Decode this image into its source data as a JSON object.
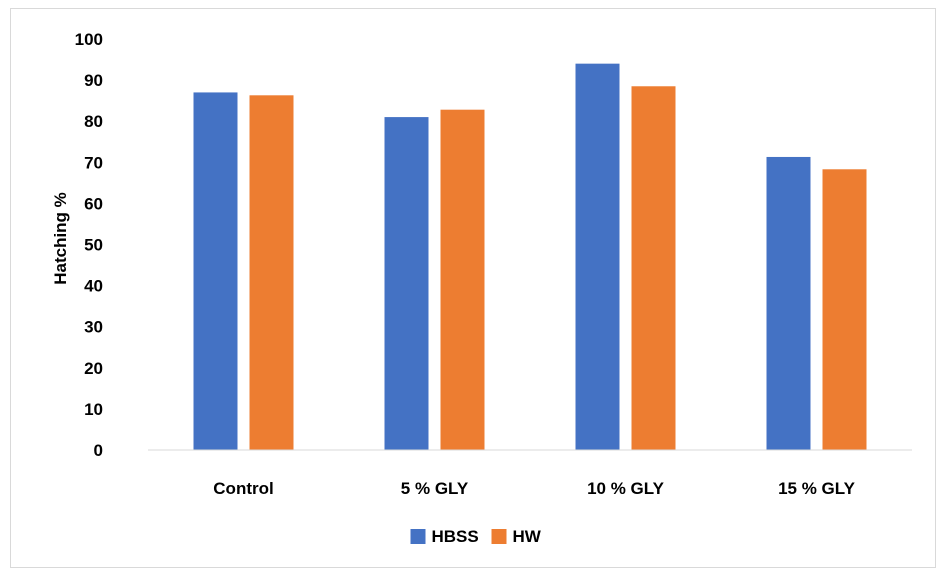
{
  "chart_data": {
    "type": "bar",
    "title": "",
    "xlabel": "",
    "ylabel": "Hatching %",
    "ylim": [
      0,
      100
    ],
    "yticks": [
      0,
      10,
      20,
      30,
      40,
      50,
      60,
      70,
      80,
      90,
      100
    ],
    "categories": [
      "Control",
      "5 % GLY",
      "10 % GLY",
      "15 % GLY"
    ],
    "series": [
      {
        "name": "HBSS",
        "color": "#4472c4",
        "values": [
          87,
          81,
          94,
          71.3
        ]
      },
      {
        "name": "HW",
        "color": "#ed7d31",
        "values": [
          86.3,
          82.8,
          88.5,
          68.3
        ]
      }
    ],
    "grid": false,
    "legend": "bottom-center"
  }
}
